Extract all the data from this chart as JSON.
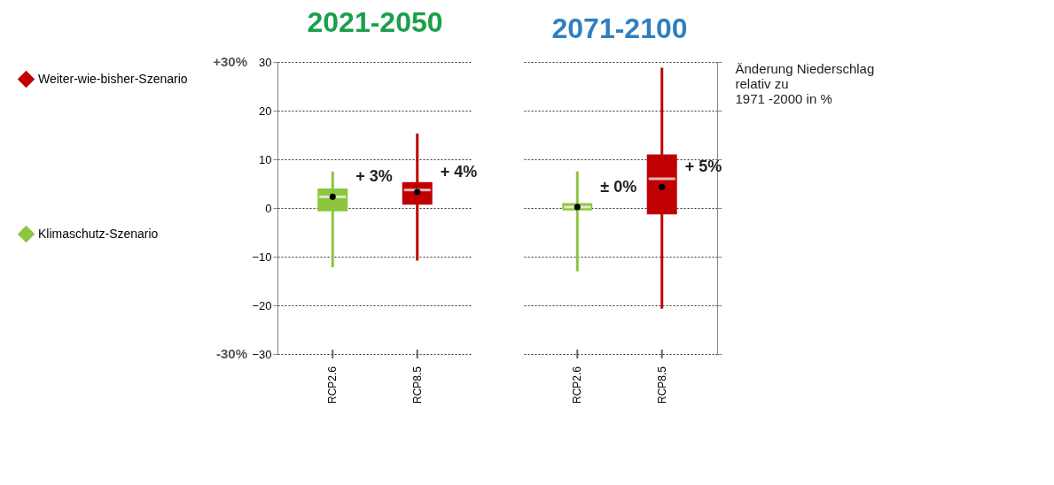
{
  "chart_data": [
    {
      "type": "box",
      "title": "2021-2050",
      "categories": [
        "RCP2.6",
        "RCP8.5"
      ],
      "ylim": [
        -30,
        30
      ],
      "yticks": [
        -30,
        -20,
        -10,
        0,
        10,
        20,
        30
      ],
      "grid": "y",
      "legend": "left",
      "series": [
        {
          "name": "Weiter-wie-bisher-Szenario",
          "color": "#c00000",
          "boxes": [
            null,
            {
              "low": -10.8,
              "q1": 0.7,
              "median": 3.7,
              "q3": 5.3,
              "high": 15.3,
              "mean": 3.3
            }
          ]
        },
        {
          "name": "Klimaschutz-Szenario",
          "color": "#8cc63f",
          "boxes": [
            {
              "low": -12.2,
              "q1": -0.7,
              "median": 2.3,
              "q3": 4,
              "high": 7.5,
              "mean": 2.3
            },
            null
          ]
        }
      ],
      "annotations": [
        {
          "text": "+ 4%",
          "x": "RCP8.5",
          "y": 3.3
        },
        {
          "text": "+ 3%",
          "x": "RCP2.6",
          "y": 2.3
        },
        "+30%",
        "-30%"
      ]
    },
    {
      "type": "box",
      "title": "2071-2100",
      "ylabel": "Änderung Niederschlag relativ zu 1971 -2000 in %",
      "categories": [
        "RCP2.6",
        "RCP8.5"
      ],
      "ylim": [
        -30,
        30
      ],
      "yticks": [
        -30,
        -20,
        -10,
        0,
        10,
        20,
        30
      ],
      "grid": "y",
      "tick_labels": "x",
      "series": [
        {
          "name": "Weiter-wie-bisher-Szenario",
          "color": "#c00000",
          "boxes": [
            null,
            {
              "low": -20.7,
              "q1": -1.3,
              "median": 6,
              "q3": 11,
              "high": 28.8,
              "mean": 4.3
            }
          ]
        },
        {
          "name": "Klimaschutz-Szenario",
          "color": "#8cc63f",
          "boxes": [
            {
              "low": -13,
              "q1": -0.5,
              "median": 0.2,
              "q3": 1,
              "high": 7.5,
              "mean": 0.2
            },
            null
          ]
        }
      ],
      "annotations": [
        {
          "text": "+ 5%",
          "x": "RCP8.5",
          "y": 4.3
        },
        {
          "text": "± 0%",
          "x": "RCP2.6",
          "y": 0.2
        }
      ]
    }
  ]
}
